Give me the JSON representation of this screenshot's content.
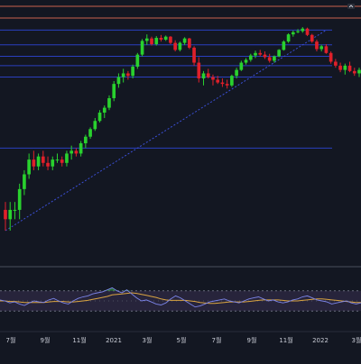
{
  "theme": {
    "background": "#131722",
    "panel_border": "#c8614f",
    "horizontal_line": "#2a3fbf",
    "up_candle": "#29d12e",
    "down_candle": "#e0202a",
    "trendline": "#3b4fd6",
    "rsi_band_fill": "#2b2740",
    "rsi_line": "#7b84e8",
    "rsi_ma_line": "#d9a441",
    "rsi_overbought_fill": "#2e8a3a",
    "axis_text": "#c9ccd6"
  },
  "icons": {
    "top_right_control": "collapse-icon"
  },
  "chart_data": [
    {
      "type": "candlestick",
      "title": "",
      "series": [
        {
          "values": [
            {
              "o": 0.6,
              "h": 0.7,
              "l": 0.4,
              "c": 0.5
            },
            {
              "o": 0.5,
              "h": 0.7,
              "l": 0.4,
              "c": 0.6
            },
            {
              "o": 0.6,
              "h": 0.7,
              "l": 0.5,
              "c": 0.6
            },
            {
              "o": 0.6,
              "h": 1.0,
              "l": 0.5,
              "c": 0.9
            },
            {
              "o": 0.9,
              "h": 1.3,
              "l": 0.8,
              "c": 1.2
            },
            {
              "o": 1.2,
              "h": 1.8,
              "l": 1.1,
              "c": 1.6
            },
            {
              "o": 1.6,
              "h": 1.9,
              "l": 1.3,
              "c": 1.4
            },
            {
              "o": 1.4,
              "h": 1.8,
              "l": 1.3,
              "c": 1.7
            },
            {
              "o": 1.7,
              "h": 1.9,
              "l": 1.4,
              "c": 1.5
            },
            {
              "o": 1.5,
              "h": 1.7,
              "l": 1.3,
              "c": 1.4
            },
            {
              "o": 1.4,
              "h": 1.7,
              "l": 1.3,
              "c": 1.6
            },
            {
              "o": 1.6,
              "h": 1.8,
              "l": 1.5,
              "c": 1.6
            },
            {
              "o": 1.6,
              "h": 1.7,
              "l": 1.4,
              "c": 1.5
            },
            {
              "o": 1.5,
              "h": 1.9,
              "l": 1.4,
              "c": 1.8
            },
            {
              "o": 1.8,
              "h": 2.1,
              "l": 1.6,
              "c": 1.9
            },
            {
              "o": 1.9,
              "h": 2.0,
              "l": 1.7,
              "c": 1.8
            },
            {
              "o": 1.8,
              "h": 2.3,
              "l": 1.7,
              "c": 2.2
            },
            {
              "o": 2.2,
              "h": 2.6,
              "l": 2.0,
              "c": 2.5
            },
            {
              "o": 2.5,
              "h": 3.0,
              "l": 2.4,
              "c": 2.9
            },
            {
              "o": 2.9,
              "h": 3.6,
              "l": 2.8,
              "c": 3.4
            },
            {
              "o": 3.4,
              "h": 4.2,
              "l": 3.3,
              "c": 4.0
            },
            {
              "o": 4.0,
              "h": 4.6,
              "l": 3.6,
              "c": 4.4
            },
            {
              "o": 4.4,
              "h": 5.6,
              "l": 4.2,
              "c": 5.3
            },
            {
              "o": 5.3,
              "h": 7.4,
              "l": 5.0,
              "c": 7.0
            },
            {
              "o": 7.0,
              "h": 8.6,
              "l": 6.5,
              "c": 8.0
            },
            {
              "o": 8.0,
              "h": 9.4,
              "l": 7.2,
              "c": 8.6
            },
            {
              "o": 8.6,
              "h": 9.0,
              "l": 7.6,
              "c": 8.2
            },
            {
              "o": 8.2,
              "h": 10.2,
              "l": 7.8,
              "c": 9.8
            },
            {
              "o": 9.8,
              "h": 12.8,
              "l": 9.4,
              "c": 12.4
            },
            {
              "o": 12.4,
              "h": 16.8,
              "l": 12.0,
              "c": 16.2
            },
            {
              "o": 16.2,
              "h": 18.4,
              "l": 15.0,
              "c": 17.0
            },
            {
              "o": 17.0,
              "h": 17.6,
              "l": 14.8,
              "c": 15.2
            },
            {
              "o": 15.2,
              "h": 17.8,
              "l": 14.8,
              "c": 17.2
            },
            {
              "o": 17.2,
              "h": 18.2,
              "l": 16.0,
              "c": 16.6
            },
            {
              "o": 16.6,
              "h": 18.0,
              "l": 16.2,
              "c": 17.6
            },
            {
              "o": 17.6,
              "h": 17.8,
              "l": 15.2,
              "c": 15.6
            },
            {
              "o": 15.6,
              "h": 16.4,
              "l": 13.2,
              "c": 13.6
            },
            {
              "o": 13.6,
              "h": 16.0,
              "l": 13.2,
              "c": 15.6
            },
            {
              "o": 15.6,
              "h": 17.4,
              "l": 15.0,
              "c": 17.0
            },
            {
              "o": 17.0,
              "h": 17.2,
              "l": 13.8,
              "c": 14.2
            },
            {
              "o": 14.2,
              "h": 14.6,
              "l": 10.0,
              "c": 10.6
            },
            {
              "o": 10.6,
              "h": 11.8,
              "l": 7.2,
              "c": 7.8
            },
            {
              "o": 7.8,
              "h": 9.0,
              "l": 6.8,
              "c": 8.6
            },
            {
              "o": 8.6,
              "h": 9.4,
              "l": 7.8,
              "c": 8.0
            },
            {
              "o": 8.0,
              "h": 8.4,
              "l": 6.8,
              "c": 7.6
            },
            {
              "o": 7.6,
              "h": 8.2,
              "l": 7.0,
              "c": 7.2
            },
            {
              "o": 7.2,
              "h": 7.8,
              "l": 6.6,
              "c": 7.0
            },
            {
              "o": 7.0,
              "h": 7.6,
              "l": 6.4,
              "c": 6.8
            },
            {
              "o": 6.8,
              "h": 8.4,
              "l": 6.6,
              "c": 8.2
            },
            {
              "o": 8.2,
              "h": 9.6,
              "l": 7.8,
              "c": 9.2
            },
            {
              "o": 9.2,
              "h": 11.0,
              "l": 9.0,
              "c": 10.6
            },
            {
              "o": 10.6,
              "h": 11.6,
              "l": 10.2,
              "c": 11.2
            },
            {
              "o": 11.2,
              "h": 12.6,
              "l": 10.8,
              "c": 12.2
            },
            {
              "o": 12.2,
              "h": 13.4,
              "l": 11.6,
              "c": 12.8
            },
            {
              "o": 12.8,
              "h": 13.6,
              "l": 12.0,
              "c": 12.4
            },
            {
              "o": 12.4,
              "h": 13.2,
              "l": 11.4,
              "c": 11.8
            },
            {
              "o": 11.8,
              "h": 12.6,
              "l": 10.6,
              "c": 11.0
            },
            {
              "o": 11.0,
              "h": 12.2,
              "l": 10.6,
              "c": 12.0
            },
            {
              "o": 12.0,
              "h": 13.8,
              "l": 11.8,
              "c": 13.6
            },
            {
              "o": 13.6,
              "h": 16.4,
              "l": 13.4,
              "c": 16.0
            },
            {
              "o": 16.0,
              "h": 18.8,
              "l": 15.6,
              "c": 18.4
            },
            {
              "o": 18.4,
              "h": 19.8,
              "l": 17.6,
              "c": 19.2
            },
            {
              "o": 19.2,
              "h": 20.4,
              "l": 18.8,
              "c": 19.6
            },
            {
              "o": 19.6,
              "h": 21.2,
              "l": 19.0,
              "c": 20.6
            },
            {
              "o": 20.6,
              "h": 21.0,
              "l": 17.8,
              "c": 18.2
            },
            {
              "o": 18.2,
              "h": 18.6,
              "l": 15.6,
              "c": 16.0
            },
            {
              "o": 16.0,
              "h": 16.6,
              "l": 13.2,
              "c": 13.8
            },
            {
              "o": 13.8,
              "h": 15.0,
              "l": 13.2,
              "c": 14.6
            },
            {
              "o": 14.6,
              "h": 15.2,
              "l": 12.6,
              "c": 12.8
            },
            {
              "o": 12.8,
              "h": 13.2,
              "l": 10.4,
              "c": 10.8
            },
            {
              "o": 10.8,
              "h": 11.4,
              "l": 9.6,
              "c": 10.0
            },
            {
              "o": 10.0,
              "h": 10.6,
              "l": 8.8,
              "c": 9.2
            },
            {
              "o": 9.2,
              "h": 10.4,
              "l": 8.4,
              "c": 10.0
            },
            {
              "o": 10.0,
              "h": 10.8,
              "l": 8.8,
              "c": 9.0
            },
            {
              "o": 9.0,
              "h": 9.6,
              "l": 8.2,
              "c": 8.6
            },
            {
              "o": 8.6,
              "h": 9.6,
              "l": 8.0,
              "c": 9.2
            }
          ]
        }
      ],
      "x_tick_labels": [
        "7월",
        "9월",
        "11월",
        "2021",
        "3월",
        "5월",
        "7월",
        "9월",
        "11월",
        "2022",
        "3월"
      ],
      "horizontal_levels": [
        20.0,
        15.0,
        12.0,
        10.0,
        8.0,
        2.0
      ],
      "trendline": {
        "from": {
          "i": 0,
          "v": 0.4
        },
        "to": {
          "i": 68,
          "v": 20.0
        }
      },
      "grid": false,
      "legend": "none"
    },
    {
      "type": "line",
      "title": "",
      "series": [
        {
          "values": [
            52,
            50,
            46,
            48,
            44,
            41,
            46,
            50,
            48,
            47,
            52,
            55,
            50,
            46,
            44,
            50,
            55,
            58,
            60,
            64,
            66,
            68,
            72,
            76,
            70,
            66,
            72,
            64,
            56,
            50,
            52,
            48,
            44,
            42,
            46,
            54,
            60,
            56,
            50,
            44,
            38,
            40,
            44,
            48,
            50,
            52,
            54,
            50,
            48,
            46,
            50,
            54,
            56,
            58,
            54,
            50,
            52,
            48,
            46,
            48,
            52,
            54,
            58,
            60,
            56,
            52,
            50,
            48,
            44,
            46,
            48,
            50,
            46,
            44,
            46
          ]
        },
        {
          "values": [
            50,
            50,
            49,
            49,
            48,
            47,
            47,
            47,
            47,
            47,
            48,
            49,
            49,
            49,
            48,
            48,
            49,
            50,
            51,
            53,
            55,
            57,
            59,
            62,
            63,
            64,
            65,
            66,
            65,
            63,
            61,
            59,
            57,
            54,
            52,
            51,
            51,
            51,
            51,
            50,
            49,
            47,
            46,
            45,
            45,
            46,
            47,
            48,
            48,
            48,
            48,
            49,
            50,
            51,
            52,
            52,
            52,
            52,
            51,
            50,
            50,
            50,
            51,
            52,
            53,
            54,
            54,
            53,
            52,
            51,
            50,
            49,
            48,
            47,
            47
          ]
        }
      ],
      "ylim": [
        0,
        100
      ],
      "bands": [
        30,
        70
      ],
      "grid": false
    }
  ]
}
